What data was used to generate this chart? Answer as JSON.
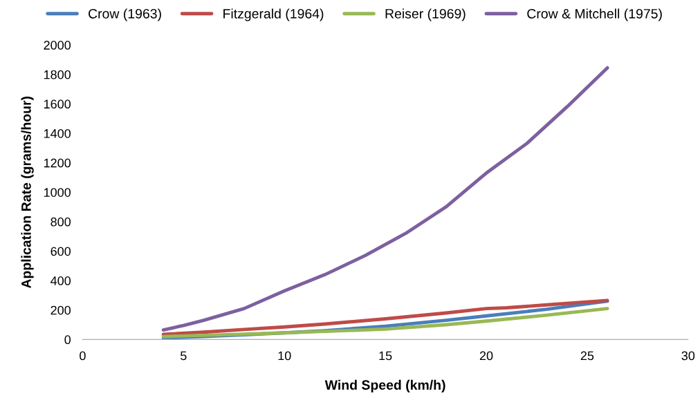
{
  "chart_data": {
    "type": "line",
    "xlabel": "Wind Speed (km/h)",
    "ylabel": "Application Rate (grams/hour)",
    "xlim": [
      0,
      30
    ],
    "xticks": [
      0,
      5,
      10,
      15,
      20,
      25,
      30
    ],
    "ylim": [
      0,
      2000
    ],
    "yticks": [
      0,
      200,
      400,
      600,
      800,
      1000,
      1200,
      1400,
      1600,
      1800,
      2000
    ],
    "grid": false,
    "legend": "top",
    "marker": "none",
    "line_style": "solid",
    "series": [
      {
        "name": "Crow (1963)",
        "color": "#4a7ebb",
        "x": [
          4,
          6,
          8,
          10,
          12,
          15,
          18,
          20,
          23,
          26
        ],
        "values": [
          10,
          20,
          32,
          45,
          60,
          90,
          130,
          160,
          205,
          260
        ]
      },
      {
        "name": "Fitzgerald (1964)",
        "color": "#be4b48",
        "x": [
          4,
          6,
          8,
          10,
          12,
          15,
          18,
          20,
          21,
          23,
          26
        ],
        "values": [
          35,
          50,
          68,
          85,
          105,
          140,
          180,
          210,
          215,
          235,
          265
        ]
      },
      {
        "name": "Reiser (1969)",
        "color": "#98b954",
        "x": [
          4,
          6,
          8,
          10,
          12,
          15,
          18,
          20,
          23,
          26
        ],
        "values": [
          20,
          28,
          36,
          45,
          55,
          70,
          100,
          125,
          165,
          210
        ]
      },
      {
        "name": "Crow & Mitchell (1975)",
        "color": "#7d60a0",
        "x": [
          4,
          5,
          6,
          8,
          10,
          12,
          14,
          16,
          18,
          20,
          22,
          24,
          26
        ],
        "values": [
          65,
          95,
          130,
          210,
          330,
          440,
          570,
          720,
          900,
          1130,
          1330,
          1580,
          1845
        ]
      }
    ]
  }
}
